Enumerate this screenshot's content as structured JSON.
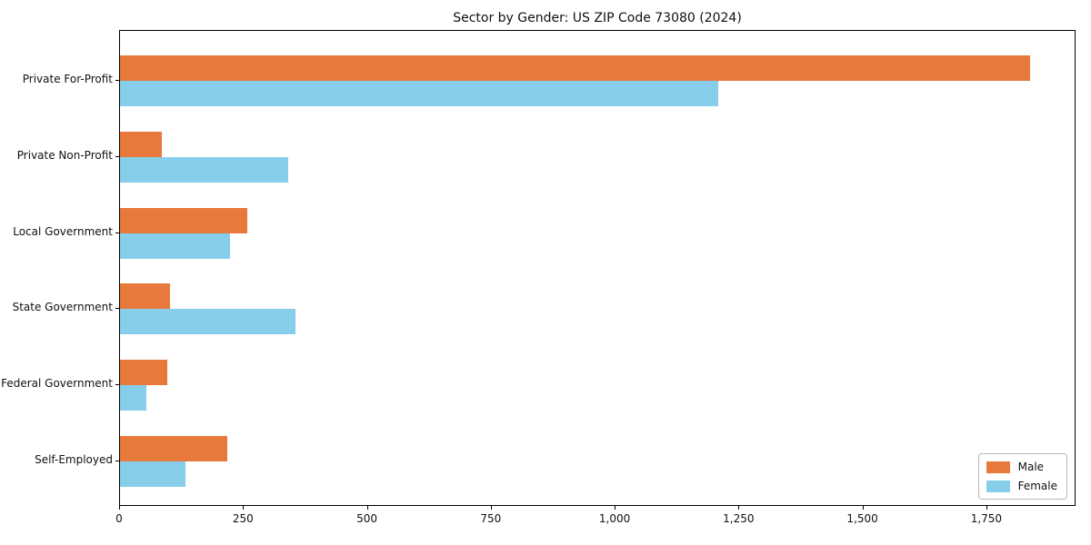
{
  "chart_data": {
    "type": "bar",
    "orientation": "horizontal",
    "title": "Sector by Gender: US ZIP Code 73080 (2024)",
    "categories": [
      "Private For-Profit",
      "Private Non-Profit",
      "Local Government",
      "State Government",
      "Federal Government",
      "Self-Employed"
    ],
    "series": [
      {
        "name": "Male",
        "color": "#e8793d",
        "values": [
          1840,
          85,
          257,
          101,
          95,
          216
        ]
      },
      {
        "name": "Female",
        "color": "#87ceeb",
        "values": [
          1210,
          340,
          222,
          354,
          54,
          133
        ]
      }
    ],
    "xlabel": "",
    "ylabel": "",
    "xlim": [
      0,
      1930
    ],
    "xticks": [
      0,
      250,
      500,
      750,
      1000,
      1250,
      1500,
      1750
    ],
    "xtick_labels": [
      "0",
      "250",
      "500",
      "750",
      "1,000",
      "1,250",
      "1,500",
      "1,750"
    ],
    "grid": false,
    "legend_position": "lower right",
    "colors": {
      "background": "#ffffff",
      "axis": "#000000",
      "text": "#111111"
    }
  }
}
